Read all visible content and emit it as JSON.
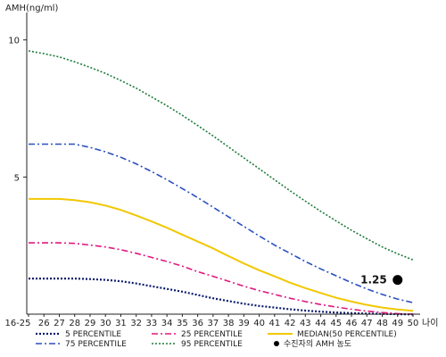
{
  "chart_data": {
    "type": "line",
    "ylabel": "AMH(ng/ml)",
    "xlabel": "나이",
    "ylim": [
      0,
      11
    ],
    "y_ticks": [
      5,
      10
    ],
    "grid": false,
    "categories": [
      "16-25",
      "26",
      "27",
      "28",
      "29",
      "30",
      "31",
      "32",
      "33",
      "34",
      "35",
      "36",
      "37",
      "38",
      "39",
      "40",
      "41",
      "42",
      "43",
      "44",
      "45",
      "46",
      "47",
      "48",
      "49",
      "50"
    ],
    "series": [
      {
        "name": "5 PERCENTILE",
        "color": "#0a1a6e",
        "dash": "2,2",
        "width": 2.2,
        "values": [
          1.3,
          1.3,
          1.3,
          1.3,
          1.28,
          1.25,
          1.2,
          1.12,
          1.02,
          0.92,
          0.82,
          0.7,
          0.58,
          0.48,
          0.38,
          0.3,
          0.24,
          0.18,
          0.13,
          0.09,
          0.06,
          0.04,
          0.02,
          0.01,
          0.0,
          -0.01
        ]
      },
      {
        "name": "25 PERCENTILE",
        "color": "#e0197e",
        "dash": "7,3,2,3",
        "width": 1.6,
        "values": [
          2.6,
          2.6,
          2.6,
          2.58,
          2.52,
          2.45,
          2.35,
          2.22,
          2.07,
          1.92,
          1.75,
          1.55,
          1.38,
          1.2,
          1.02,
          0.86,
          0.72,
          0.58,
          0.46,
          0.35,
          0.26,
          0.18,
          0.11,
          0.06,
          0.02,
          0.0
        ]
      },
      {
        "name": "MEDIAN(50 PERCENTILE)",
        "color": "#f2c700",
        "dash": "",
        "width": 2,
        "values": [
          4.2,
          4.2,
          4.2,
          4.16,
          4.08,
          3.96,
          3.8,
          3.6,
          3.38,
          3.15,
          2.9,
          2.65,
          2.4,
          2.12,
          1.85,
          1.6,
          1.38,
          1.15,
          0.95,
          0.77,
          0.6,
          0.46,
          0.34,
          0.24,
          0.17,
          0.12
        ]
      },
      {
        "name": "75 PERCENTILE",
        "color": "#2a4fc0",
        "dash": "7,3,2,3",
        "width": 1.6,
        "values": [
          6.2,
          6.2,
          6.2,
          6.2,
          6.08,
          5.92,
          5.72,
          5.48,
          5.2,
          4.9,
          4.58,
          4.25,
          3.9,
          3.55,
          3.2,
          2.85,
          2.52,
          2.22,
          1.92,
          1.65,
          1.4,
          1.15,
          0.92,
          0.72,
          0.55,
          0.42
        ]
      },
      {
        "name": "95 PERCENTILE",
        "color": "#1d7a3a",
        "dash": "2,2",
        "width": 1.6,
        "values": [
          9.6,
          9.5,
          9.38,
          9.2,
          9.0,
          8.78,
          8.52,
          8.24,
          7.92,
          7.6,
          7.25,
          6.88,
          6.5,
          6.1,
          5.7,
          5.3,
          4.9,
          4.5,
          4.12,
          3.75,
          3.4,
          3.06,
          2.75,
          2.45,
          2.2,
          1.98
        ]
      }
    ],
    "point": {
      "label": "수진자의 AMH 농도",
      "value_label": "1.25",
      "x": "49",
      "y": 1.25,
      "color": "#000000"
    },
    "legend_placement": "bottom"
  }
}
